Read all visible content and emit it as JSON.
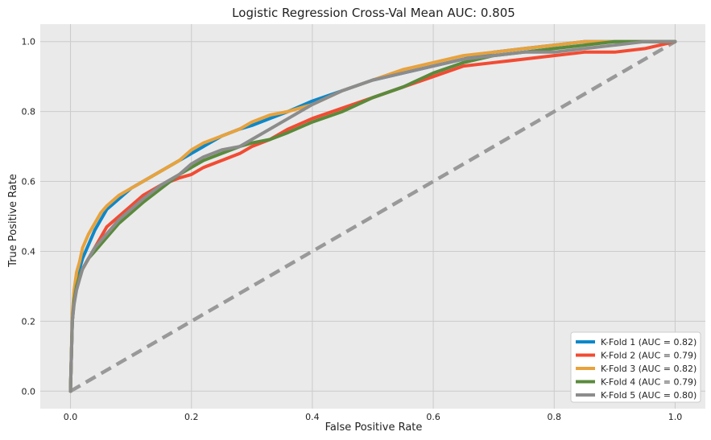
{
  "chart_data": {
    "type": "line",
    "title": "Logistic Regression Cross-Val Mean AUC: 0.805",
    "xlabel": "False Positive Rate",
    "ylabel": "True Positive Rate",
    "xlim": [
      -0.05,
      1.05
    ],
    "ylim": [
      -0.05,
      1.05
    ],
    "xticks": [
      "0.0",
      "0.2",
      "0.4",
      "0.6",
      "0.8",
      "1.0"
    ],
    "yticks": [
      "0.0",
      "0.2",
      "0.4",
      "0.6",
      "0.8",
      "1.0"
    ],
    "grid": true,
    "legend_position": "lower-right",
    "background": "#eaeaea",
    "series": [
      {
        "name": "K-Fold 1 (AUC = 0.82)",
        "color": "#0d87c9",
        "x": [
          0,
          0.003,
          0.006,
          0.01,
          0.015,
          0.02,
          0.03,
          0.04,
          0.05,
          0.06,
          0.08,
          0.1,
          0.12,
          0.15,
          0.18,
          0.2,
          0.22,
          0.25,
          0.28,
          0.3,
          0.33,
          0.36,
          0.4,
          0.45,
          0.5,
          0.55,
          0.6,
          0.65,
          0.7,
          0.75,
          0.8,
          0.85,
          0.9,
          0.95,
          1.0
        ],
        "y": [
          0,
          0.2,
          0.27,
          0.32,
          0.35,
          0.38,
          0.42,
          0.46,
          0.49,
          0.52,
          0.55,
          0.58,
          0.6,
          0.63,
          0.66,
          0.68,
          0.7,
          0.73,
          0.75,
          0.76,
          0.78,
          0.8,
          0.83,
          0.86,
          0.89,
          0.91,
          0.93,
          0.95,
          0.97,
          0.98,
          0.99,
          1.0,
          1.0,
          1.0,
          1.0
        ]
      },
      {
        "name": "K-Fold 2 (AUC = 0.79)",
        "color": "#f24b33",
        "x": [
          0,
          0.003,
          0.006,
          0.01,
          0.015,
          0.02,
          0.03,
          0.04,
          0.05,
          0.06,
          0.08,
          0.1,
          0.12,
          0.15,
          0.18,
          0.2,
          0.22,
          0.25,
          0.28,
          0.3,
          0.33,
          0.36,
          0.4,
          0.45,
          0.5,
          0.55,
          0.6,
          0.65,
          0.7,
          0.75,
          0.8,
          0.85,
          0.9,
          0.95,
          1.0
        ],
        "y": [
          0,
          0.2,
          0.26,
          0.3,
          0.33,
          0.35,
          0.38,
          0.41,
          0.44,
          0.47,
          0.5,
          0.53,
          0.56,
          0.59,
          0.61,
          0.62,
          0.64,
          0.66,
          0.68,
          0.7,
          0.72,
          0.75,
          0.78,
          0.81,
          0.84,
          0.87,
          0.9,
          0.93,
          0.94,
          0.95,
          0.96,
          0.97,
          0.97,
          0.98,
          1.0
        ]
      },
      {
        "name": "K-Fold 3 (AUC = 0.82)",
        "color": "#e8a23c",
        "x": [
          0,
          0.003,
          0.006,
          0.01,
          0.015,
          0.02,
          0.03,
          0.04,
          0.05,
          0.06,
          0.08,
          0.1,
          0.12,
          0.15,
          0.18,
          0.2,
          0.22,
          0.25,
          0.28,
          0.3,
          0.33,
          0.36,
          0.4,
          0.45,
          0.5,
          0.55,
          0.6,
          0.65,
          0.7,
          0.75,
          0.8,
          0.85,
          0.9,
          0.95,
          1.0
        ],
        "y": [
          0,
          0.22,
          0.29,
          0.34,
          0.37,
          0.41,
          0.45,
          0.48,
          0.51,
          0.53,
          0.56,
          0.58,
          0.6,
          0.63,
          0.66,
          0.69,
          0.71,
          0.73,
          0.75,
          0.77,
          0.79,
          0.8,
          0.82,
          0.86,
          0.89,
          0.92,
          0.94,
          0.96,
          0.97,
          0.98,
          0.99,
          1.0,
          1.0,
          1.0,
          1.0
        ]
      },
      {
        "name": "K-Fold 4 (AUC = 0.79)",
        "color": "#5a8a3c",
        "x": [
          0,
          0.003,
          0.006,
          0.01,
          0.015,
          0.02,
          0.03,
          0.04,
          0.05,
          0.06,
          0.08,
          0.1,
          0.12,
          0.15,
          0.18,
          0.2,
          0.22,
          0.25,
          0.28,
          0.3,
          0.33,
          0.36,
          0.4,
          0.45,
          0.5,
          0.55,
          0.6,
          0.65,
          0.7,
          0.75,
          0.8,
          0.85,
          0.9,
          0.95,
          1.0
        ],
        "y": [
          0,
          0.2,
          0.26,
          0.3,
          0.33,
          0.35,
          0.38,
          0.4,
          0.42,
          0.44,
          0.48,
          0.51,
          0.54,
          0.58,
          0.62,
          0.64,
          0.66,
          0.68,
          0.7,
          0.71,
          0.72,
          0.74,
          0.77,
          0.8,
          0.84,
          0.87,
          0.91,
          0.94,
          0.96,
          0.97,
          0.98,
          0.99,
          1.0,
          1.0,
          1.0
        ]
      },
      {
        "name": "K-Fold 5 (AUC = 0.80)",
        "color": "#8c8c8c",
        "x": [
          0,
          0.003,
          0.006,
          0.01,
          0.015,
          0.02,
          0.03,
          0.04,
          0.05,
          0.06,
          0.08,
          0.1,
          0.12,
          0.15,
          0.18,
          0.2,
          0.22,
          0.25,
          0.28,
          0.3,
          0.33,
          0.36,
          0.4,
          0.45,
          0.5,
          0.55,
          0.6,
          0.65,
          0.7,
          0.75,
          0.8,
          0.85,
          0.9,
          0.95,
          1.0
        ],
        "y": [
          0,
          0.2,
          0.25,
          0.29,
          0.32,
          0.35,
          0.38,
          0.41,
          0.43,
          0.45,
          0.49,
          0.52,
          0.55,
          0.59,
          0.62,
          0.65,
          0.67,
          0.69,
          0.7,
          0.72,
          0.75,
          0.78,
          0.82,
          0.86,
          0.89,
          0.91,
          0.93,
          0.95,
          0.96,
          0.97,
          0.97,
          0.98,
          0.99,
          1.0,
          1.0
        ]
      }
    ],
    "reference_line": {
      "x": [
        0,
        1
      ],
      "y": [
        0,
        1
      ],
      "color": "#999999",
      "style": "dashed"
    }
  }
}
